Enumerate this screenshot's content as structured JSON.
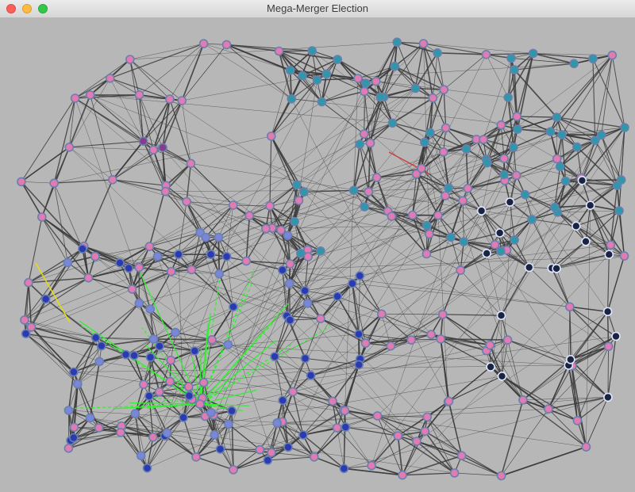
{
  "window": {
    "title": "Mega-Merger Election",
    "controls": [
      "close",
      "minimize",
      "maximize"
    ]
  },
  "colors": {
    "background": "#b7b7b7",
    "edge": "#3c3c3c",
    "node_outline": "#6a7fb0",
    "node_pink": "#e07cb0",
    "node_teal": "#2e98a8",
    "node_blue": "#2a3ab0",
    "node_periwinkle": "#7a86d8",
    "node_dark": "#1a2440",
    "node_purple": "#8a3a8a",
    "edge_green": "#33ee33",
    "edge_yellow": "#e8e000",
    "edge_red": "#d23a3a"
  },
  "chart_data": {
    "type": "network-graph",
    "description_counts": {
      "pink_nodes": 140,
      "teal_nodes": 60,
      "blue_nodes": 45,
      "periwinkle_nodes": 25,
      "dark_nodes": 20,
      "purple_nodes": 2
    },
    "highlighted_edges": {
      "green_star_center": "lower-left pink node",
      "green_edges": 30,
      "yellow_edges": 1,
      "red_edges": 1
    }
  }
}
